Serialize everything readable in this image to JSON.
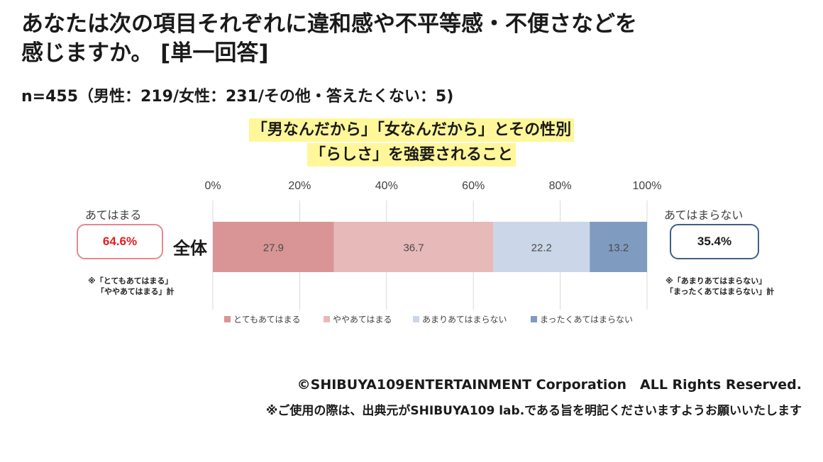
{
  "header": {
    "title_line1": "あなたは次の項目それぞれに違和感や不平等感・不便さなどを",
    "title_line2": "感じますか。 [単一回答]",
    "sample": "n=455（男性：219/女性：231/その他・答えたくない：5)"
  },
  "summary": {
    "left_label": "あてはまる",
    "left_value": "64.6%",
    "left_note_line1": "※「とてもあてはまる」",
    "left_note_line2": "「ややあてはまる」計",
    "right_label": "あてはまらない",
    "right_value": "35.4%",
    "right_note_line1": "※「あまりあてはまらない」",
    "right_note_line2": "「まったくあてはまらない」計"
  },
  "footer": {
    "copyright": "©SHIBUYA109ENTERTAINMENT Corporation　ALL Rights Reserved.",
    "usage_note": "※ご使用の際は、出典元がSHIBUYA109 lab.である旨を明記くださいますようお願いいたします"
  },
  "chart_data": {
    "type": "bar",
    "orientation": "horizontal",
    "stacked": true,
    "title_line1": "「男なんだから」「女なんだから」とその性別",
    "title_line2": "「らしさ」を強要されること",
    "categories": [
      "全体"
    ],
    "xlim": [
      0,
      100
    ],
    "x_ticks": [
      "0%",
      "20%",
      "40%",
      "60%",
      "80%",
      "100%"
    ],
    "grid": true,
    "legend_position": "bottom",
    "series": [
      {
        "name": "とてもあてはまる",
        "values": [
          27.9
        ],
        "color": "#d99595"
      },
      {
        "name": "ややあてはまる",
        "values": [
          36.7
        ],
        "color": "#e8b9b9"
      },
      {
        "name": "あまりあてはまらない",
        "values": [
          22.2
        ],
        "color": "#cbd7e8"
      },
      {
        "name": "まったくあてはまらない",
        "values": [
          13.2
        ],
        "color": "#7f9bbf"
      }
    ]
  }
}
